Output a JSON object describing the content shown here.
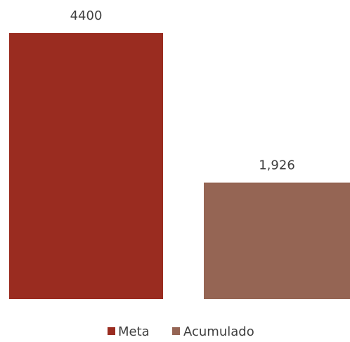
{
  "chart_data": {
    "type": "bar",
    "categories": [
      "Meta",
      "Acumulado"
    ],
    "series": [
      {
        "name": "Meta",
        "values": [
          4400,
          null
        ],
        "color": "#9A2C20"
      },
      {
        "name": "Acumulado",
        "values": [
          null,
          1926
        ],
        "color": "#956554"
      }
    ],
    "values": [
      4400,
      1926
    ],
    "data_labels": [
      "4400",
      "1,926"
    ],
    "ylim": [
      0,
      4400
    ],
    "grid": false,
    "legend": {
      "position": "bottom",
      "entries": [
        "Meta",
        "Acumulado"
      ]
    },
    "title": "",
    "xlabel": "",
    "ylabel": ""
  }
}
